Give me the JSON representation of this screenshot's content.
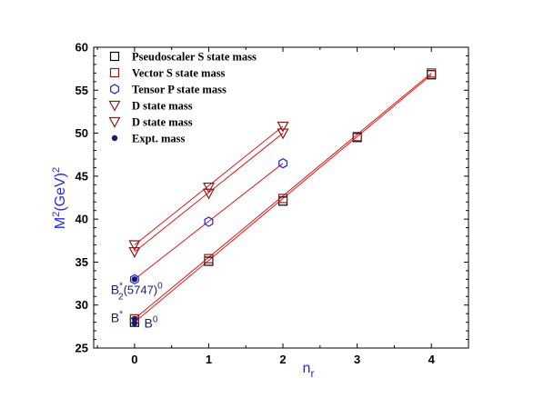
{
  "chart_data": {
    "type": "scatter",
    "xlabel": {
      "main": "n",
      "sub": "r"
    },
    "ylabel": {
      "main": "M",
      "sup1": "2",
      "mid": "(GeV)",
      "sup2": "2"
    },
    "xlim": [
      -0.55,
      4.5
    ],
    "ylim": [
      25,
      60
    ],
    "xticks": [
      0,
      1,
      2,
      3,
      4
    ],
    "yticks": [
      25,
      30,
      35,
      40,
      45,
      50,
      55,
      60
    ],
    "grid": false,
    "legend_position": "top-left",
    "series": [
      {
        "name": "Pseudoscaler S state mass",
        "marker": "square",
        "color": "#000000",
        "x": [
          0,
          1,
          2,
          3,
          4
        ],
        "y": [
          28.0,
          35.1,
          42.1,
          49.5,
          56.8
        ]
      },
      {
        "name": "Vector S state mass",
        "marker": "square",
        "color": "#8b1a1a",
        "x": [
          0,
          1,
          2,
          3,
          4
        ],
        "y": [
          28.4,
          35.4,
          42.4,
          49.6,
          57.0
        ]
      },
      {
        "name": "Tensor P state mass",
        "marker": "hexagon",
        "color": "#2020e0",
        "x": [
          0,
          1,
          2
        ],
        "y": [
          33.0,
          39.7,
          46.5
        ]
      },
      {
        "name": "D state mass",
        "marker": "triangle-down",
        "color": "#8b1a1a",
        "x": [
          0,
          1,
          2
        ],
        "y": [
          36.2,
          43.0,
          50.0
        ]
      },
      {
        "name": "D state mass",
        "marker": "triangle-down",
        "color": "#8b1a1a",
        "x": [
          0,
          1,
          2
        ],
        "y": [
          37.0,
          43.7,
          50.8
        ]
      },
      {
        "name": "Expt. mass",
        "marker": "filled-circle",
        "color": "#1a1a6e",
        "x": [
          0,
          0,
          0
        ],
        "y": [
          27.9,
          28.4,
          33.0
        ]
      }
    ],
    "fit_lines": [
      {
        "color": "#e01818",
        "x": [
          0,
          4
        ],
        "y": [
          28.0,
          56.8
        ]
      },
      {
        "color": "#e01818",
        "x": [
          0,
          4
        ],
        "y": [
          28.4,
          57.0
        ]
      },
      {
        "color": "#e01818",
        "x": [
          0,
          2
        ],
        "y": [
          33.0,
          46.5
        ]
      },
      {
        "color": "#e01818",
        "x": [
          0,
          2
        ],
        "y": [
          36.2,
          50.0
        ]
      },
      {
        "color": "#e01818",
        "x": [
          0,
          2
        ],
        "y": [
          37.0,
          50.8
        ]
      }
    ],
    "annotations": [
      {
        "text": "B",
        "sup": "*",
        "sub": "2",
        "tail": "(5747)",
        "tail_sup": "0",
        "x": -0.32,
        "y": 31.3
      },
      {
        "text": "B",
        "sup": "*",
        "x": -0.32,
        "y": 28.0
      },
      {
        "text": "B",
        "sup": "0",
        "x": 0.13,
        "y": 27.4
      }
    ],
    "colors": {
      "axis_title": "#2a2ad8",
      "fit_line": "#e01818"
    }
  }
}
